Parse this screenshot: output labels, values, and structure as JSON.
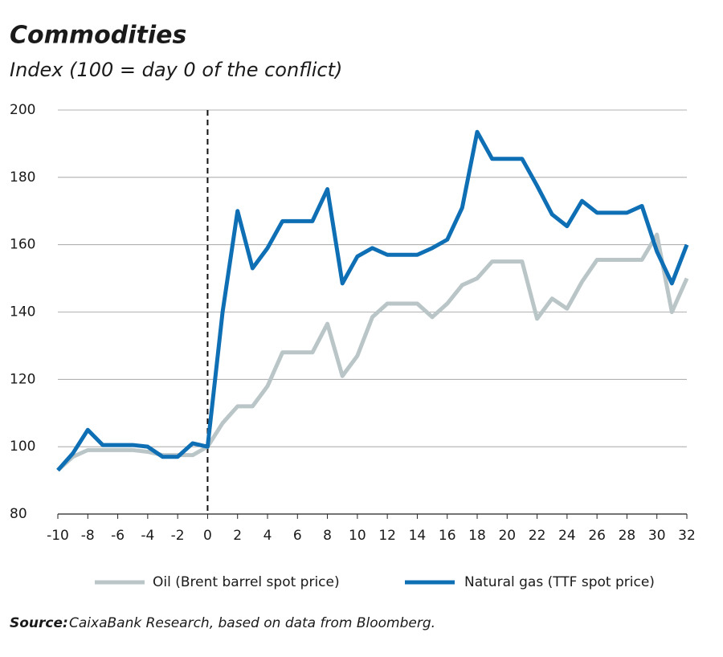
{
  "chart_data": {
    "type": "line",
    "title": "Commodities",
    "subtitle": "Index (100 = day 0 of the conflict)",
    "x": [
      -10,
      -9,
      -8,
      -7,
      -6,
      -5,
      -4,
      -3,
      -2,
      -1,
      0,
      1,
      2,
      3,
      4,
      5,
      6,
      7,
      8,
      9,
      10,
      11,
      12,
      13,
      14,
      15,
      16,
      17,
      18,
      19,
      20,
      21,
      22,
      23,
      24,
      25,
      26,
      27,
      28,
      29,
      30,
      31,
      32
    ],
    "series": [
      {
        "name": "Oil (Brent barrel spot price)",
        "color": "#b9c5c7",
        "values": [
          93,
          97,
          99,
          99,
          99,
          99,
          98.5,
          97.5,
          97.5,
          97.5,
          100,
          107,
          112,
          112,
          118,
          128,
          128,
          128,
          136.5,
          121,
          127,
          138.5,
          142.5,
          142.5,
          142.5,
          138.5,
          142.5,
          148,
          150,
          155,
          155,
          155,
          138,
          144,
          141,
          149,
          155.5,
          155.5,
          155.5,
          155.5,
          163,
          140,
          150
        ]
      },
      {
        "name": "Natural gas (TTF spot price)",
        "color": "#0f6fb5",
        "values": [
          93,
          98,
          105,
          100.5,
          100.5,
          100.5,
          100,
          97,
          97,
          101,
          100,
          140,
          170,
          153,
          159,
          167,
          167,
          167,
          176.5,
          148.5,
          156.5,
          159,
          157,
          157,
          157,
          159,
          161.5,
          171,
          193.5,
          185.5,
          185.5,
          185.5,
          177.5,
          169,
          165.5,
          173,
          169.5,
          169.5,
          169.5,
          171.5,
          158,
          148.5,
          160
        ]
      }
    ],
    "xlim": [
      -10,
      32
    ],
    "xticks": [
      -10,
      -8,
      -6,
      -4,
      -2,
      0,
      2,
      4,
      6,
      8,
      10,
      12,
      14,
      16,
      18,
      20,
      22,
      24,
      26,
      28,
      30,
      32
    ],
    "ylim": [
      80,
      200
    ],
    "yticks": [
      80,
      100,
      120,
      140,
      160,
      180,
      200
    ],
    "grid": true,
    "reference_line_x": 0,
    "source_label": "Source:",
    "source": "CaixaBank Research, based on data from Bloomberg."
  }
}
